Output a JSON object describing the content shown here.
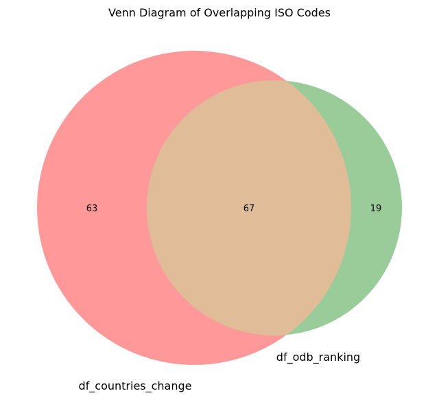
{
  "title": "Venn Diagram of Overlapping ISO Codes",
  "sets": [
    {
      "name": "df_countries_change",
      "color": "#ff9999"
    },
    {
      "name": "df_odb_ranking",
      "color": "#99cc99"
    }
  ],
  "intersection_color": "#e0bc98",
  "regions": {
    "only_a": "63",
    "both": "67",
    "only_b": "19"
  }
}
